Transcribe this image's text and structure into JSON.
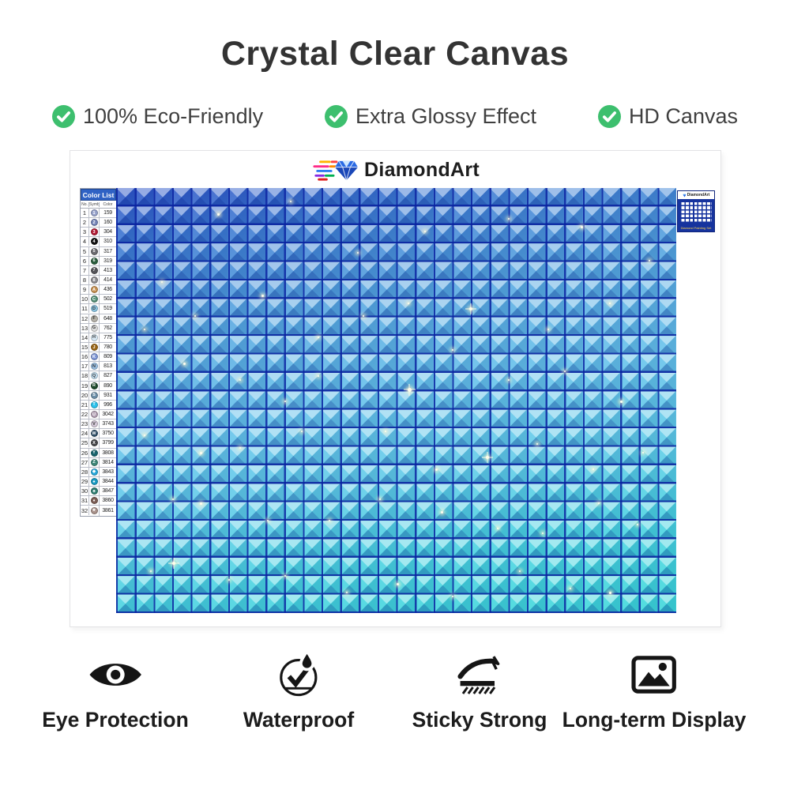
{
  "title": "Crystal Clear Canvas",
  "features": [
    {
      "label": "100% Eco-Friendly"
    },
    {
      "label": "Extra Glossy Effect"
    },
    {
      "label": "HD Canvas"
    }
  ],
  "brand": {
    "name": "DiamondArt",
    "mini_label_subtitle": "Diamond Painting Set"
  },
  "color_list": {
    "title": "Color List",
    "columns": [
      "No.",
      "Symbol",
      "Color"
    ],
    "rows": [
      {
        "no": "1",
        "sym": "1",
        "code": "159",
        "bg": "#97a3cc",
        "fg": "#ffffff"
      },
      {
        "no": "2",
        "sym": "2",
        "code": "160",
        "bg": "#7484b8",
        "fg": "#ffffff"
      },
      {
        "no": "3",
        "sym": "3",
        "code": "304",
        "bg": "#b21a34",
        "fg": "#ffffff"
      },
      {
        "no": "4",
        "sym": "4",
        "code": "310",
        "bg": "#111111",
        "fg": "#ffffff"
      },
      {
        "no": "5",
        "sym": "5",
        "code": "317",
        "bg": "#6b6b70",
        "fg": "#ffffff"
      },
      {
        "no": "6",
        "sym": "6",
        "code": "319",
        "bg": "#2a5e3e",
        "fg": "#ffffff"
      },
      {
        "no": "7",
        "sym": "7",
        "code": "413",
        "bg": "#55555a",
        "fg": "#ffffff"
      },
      {
        "no": "8",
        "sym": "8",
        "code": "414",
        "bg": "#8b8b90",
        "fg": "#ffffff"
      },
      {
        "no": "9",
        "sym": "A",
        "code": "436",
        "bg": "#c69051",
        "fg": "#ffffff"
      },
      {
        "no": "10",
        "sym": "C",
        "code": "502",
        "bg": "#548f77",
        "fg": "#ffffff"
      },
      {
        "no": "11",
        "sym": "D",
        "code": "519",
        "bg": "#8ac4e2",
        "fg": "#333333"
      },
      {
        "no": "12",
        "sym": "F",
        "code": "648",
        "bg": "#b5b1a8",
        "fg": "#333333"
      },
      {
        "no": "13",
        "sym": "G",
        "code": "762",
        "bg": "#dcdcdc",
        "fg": "#333333"
      },
      {
        "no": "14",
        "sym": "H",
        "code": "775",
        "bg": "#d9eaf6",
        "fg": "#333333"
      },
      {
        "no": "15",
        "sym": "J",
        "code": "780",
        "bg": "#9a6616",
        "fg": "#ffffff"
      },
      {
        "no": "16",
        "sym": "K",
        "code": "809",
        "bg": "#7e96d6",
        "fg": "#ffffff"
      },
      {
        "no": "17",
        "sym": "N",
        "code": "813",
        "bg": "#9cc2e5",
        "fg": "#333333"
      },
      {
        "no": "18",
        "sym": "Q",
        "code": "827",
        "bg": "#c2def0",
        "fg": "#333333"
      },
      {
        "no": "19",
        "sym": "R",
        "code": "890",
        "bg": "#1e4b2c",
        "fg": "#ffffff"
      },
      {
        "no": "20",
        "sym": "S",
        "code": "931",
        "bg": "#6c8ea8",
        "fg": "#ffffff"
      },
      {
        "no": "21",
        "sym": "T",
        "code": "996",
        "bg": "#2cc2ec",
        "fg": "#ffffff"
      },
      {
        "no": "22",
        "sym": "U",
        "code": "3042",
        "bg": "#b3a0b4",
        "fg": "#ffffff"
      },
      {
        "no": "23",
        "sym": "V",
        "code": "3743",
        "bg": "#d4c9d8",
        "fg": "#333333"
      },
      {
        "no": "24",
        "sym": "W",
        "code": "3750",
        "bg": "#2f4e68",
        "fg": "#ffffff"
      },
      {
        "no": "25",
        "sym": "X",
        "code": "3799",
        "bg": "#47474a",
        "fg": "#ffffff"
      },
      {
        "no": "26",
        "sym": "Y",
        "code": "3808",
        "bg": "#1a646e",
        "fg": "#ffffff"
      },
      {
        "no": "27",
        "sym": "Z",
        "code": "3814",
        "bg": "#3e8778",
        "fg": "#ffffff"
      },
      {
        "no": "28",
        "sym": "◆",
        "code": "3843",
        "bg": "#28a8da",
        "fg": "#ffffff"
      },
      {
        "no": "29",
        "sym": "♠",
        "code": "3844",
        "bg": "#189ac2",
        "fg": "#ffffff"
      },
      {
        "no": "30",
        "sym": "♣",
        "code": "3847",
        "bg": "#2f7e72",
        "fg": "#ffffff"
      },
      {
        "no": "31",
        "sym": "♦",
        "code": "3860",
        "bg": "#7c5e56",
        "fg": "#ffffff"
      },
      {
        "no": "32",
        "sym": "★",
        "code": "3861",
        "bg": "#a8918a",
        "fg": "#ffffff"
      }
    ]
  },
  "canvas": {
    "grid": {
      "cols": 30,
      "rows": 23,
      "gap_color": "rgba(9,34,160,0.85)",
      "gradient_stops": [
        "#2b52c6 0%",
        "#3b7ad2 12%",
        "#54a6e0 30%",
        "#63c0ea 48%",
        "#5ecae8 64%",
        "#46d2e0 82%",
        "#3ad8da 100%"
      ]
    },
    "sparkles": [
      [
        8,
        22,
        2
      ],
      [
        18,
        6,
        3
      ],
      [
        31,
        3,
        2
      ],
      [
        43,
        15,
        2
      ],
      [
        55,
        10,
        2
      ],
      [
        70,
        7,
        2
      ],
      [
        83,
        9,
        3
      ],
      [
        95,
        17,
        2
      ],
      [
        5,
        33,
        2
      ],
      [
        14,
        30,
        2
      ],
      [
        26,
        25,
        3
      ],
      [
        36,
        35,
        2
      ],
      [
        44,
        30,
        2
      ],
      [
        52,
        27,
        2
      ],
      [
        63,
        28,
        4
      ],
      [
        77,
        33,
        2
      ],
      [
        88,
        27,
        2
      ],
      [
        12,
        41,
        3
      ],
      [
        22,
        45,
        2
      ],
      [
        30,
        50,
        2
      ],
      [
        36,
        44,
        2
      ],
      [
        52,
        47,
        5
      ],
      [
        60,
        38,
        2
      ],
      [
        70,
        45,
        2
      ],
      [
        80,
        43,
        2
      ],
      [
        90,
        50,
        3
      ],
      [
        5,
        58,
        2
      ],
      [
        15,
        62,
        3
      ],
      [
        22,
        61,
        2
      ],
      [
        33,
        57,
        2
      ],
      [
        48,
        57,
        2
      ],
      [
        57,
        66,
        3
      ],
      [
        66,
        63,
        4
      ],
      [
        75,
        60,
        2
      ],
      [
        85,
        66,
        2
      ],
      [
        94,
        62,
        2
      ],
      [
        10,
        73,
        2
      ],
      [
        15,
        74,
        3
      ],
      [
        27,
        78,
        2
      ],
      [
        38,
        78,
        2
      ],
      [
        47,
        73,
        2
      ],
      [
        58,
        76,
        3
      ],
      [
        68,
        80,
        2
      ],
      [
        76,
        81,
        2
      ],
      [
        86,
        74,
        2
      ],
      [
        93,
        79,
        2
      ],
      [
        6,
        90,
        2
      ],
      [
        10,
        88,
        4
      ],
      [
        20,
        92,
        2
      ],
      [
        30,
        91,
        2
      ],
      [
        41,
        95,
        2
      ],
      [
        50,
        93,
        3
      ],
      [
        60,
        96,
        2
      ],
      [
        72,
        90,
        2
      ],
      [
        81,
        94,
        2
      ],
      [
        88,
        95,
        3
      ]
    ]
  },
  "bottom_features": [
    {
      "label": "Eye Protection",
      "icon": "eye"
    },
    {
      "label": "Waterproof",
      "icon": "droplet"
    },
    {
      "label": "Sticky Strong",
      "icon": "sticker"
    },
    {
      "label": "Long-term Display",
      "icon": "picture"
    }
  ],
  "colors": {
    "check_green": "#3dbf6e",
    "title_text": "#333333",
    "mini_label_bg": "#16339e",
    "mini_label_accent": "#ffd34d"
  }
}
